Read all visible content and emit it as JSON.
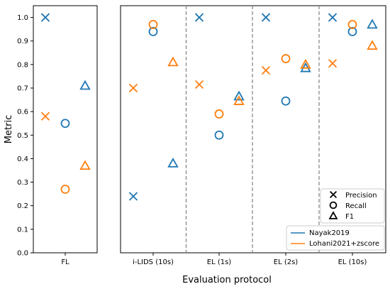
{
  "chart_data": {
    "type": "scatter",
    "xlabel": "Evaluation protocol",
    "ylabel": "Metric",
    "ylim": [
      0,
      1.05
    ],
    "yticks": [
      "0.0",
      "0.1",
      "0.2",
      "0.3",
      "0.4",
      "0.5",
      "0.6",
      "0.7",
      "0.8",
      "0.9",
      "1.0"
    ],
    "categories": [
      "FL",
      "i-LIDS (10s)",
      "EL (1s)",
      "EL (2s)",
      "EL (10s)"
    ],
    "metrics": [
      {
        "name": "Precision",
        "marker": "x"
      },
      {
        "name": "Recall",
        "marker": "o"
      },
      {
        "name": "F1",
        "marker": "^"
      }
    ],
    "series": [
      {
        "name": "Nayak2019",
        "color": "#1f77b4",
        "values": {
          "Precision": [
            1.0,
            0.24,
            1.0,
            1.0,
            1.0
          ],
          "Recall": [
            0.55,
            0.94,
            0.5,
            0.645,
            0.94
          ],
          "F1": [
            0.71,
            0.38,
            0.665,
            0.785,
            0.97
          ]
        }
      },
      {
        "name": "Lohani2021+zscore",
        "color": "#ff7f0e",
        "values": {
          "Precision": [
            0.58,
            0.7,
            0.715,
            0.775,
            0.805
          ],
          "Recall": [
            0.27,
            0.97,
            0.59,
            0.825,
            0.97
          ],
          "F1": [
            0.37,
            0.81,
            0.645,
            0.8,
            0.88
          ]
        }
      }
    ],
    "grid": false,
    "legend_placement": "bottom-right"
  }
}
